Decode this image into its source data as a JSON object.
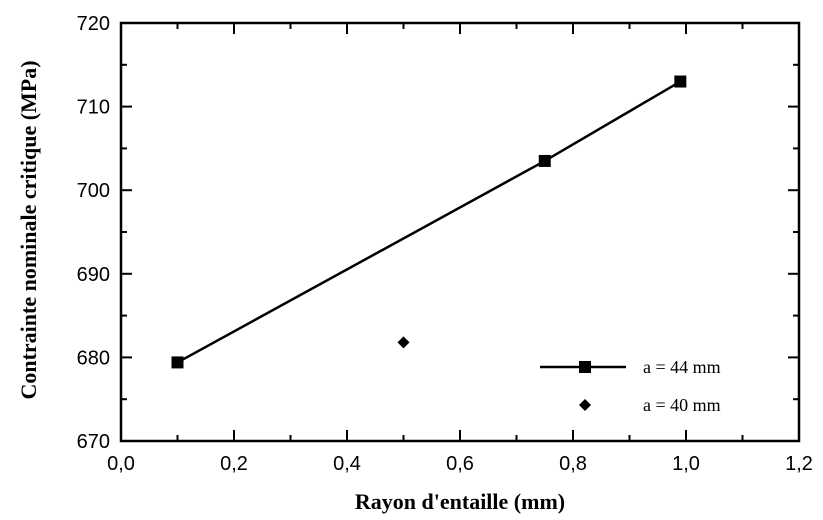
{
  "chart_data": {
    "type": "scatter",
    "title": "",
    "xlabel": "Rayon d'entaille (mm)",
    "ylabel": "Contrainte nominale critique (MPa)",
    "xlim": [
      0.0,
      1.2
    ],
    "ylim": [
      670,
      720
    ],
    "x_ticks": [
      0.0,
      0.2,
      0.4,
      0.6,
      0.8,
      1.0,
      1.2
    ],
    "x_tick_labels": [
      "0,0",
      "0,2",
      "0,4",
      "0,6",
      "0,8",
      "1,0",
      "1,2"
    ],
    "y_ticks": [
      670,
      680,
      690,
      700,
      710,
      720
    ],
    "y_tick_labels": [
      "670",
      "680",
      "690",
      "700",
      "710",
      "720"
    ],
    "grid": false,
    "legend_position": "bottom-right",
    "series": [
      {
        "name": "a = 44 mm",
        "marker": "square",
        "line": true,
        "color": "#000000",
        "x": [
          0.1,
          0.75,
          0.99
        ],
        "y": [
          679.4,
          703.5,
          713.0
        ]
      },
      {
        "name": "a = 40 mm",
        "marker": "diamond",
        "line": false,
        "color": "#000000",
        "x": [
          0.5
        ],
        "y": [
          681.8
        ]
      }
    ]
  }
}
